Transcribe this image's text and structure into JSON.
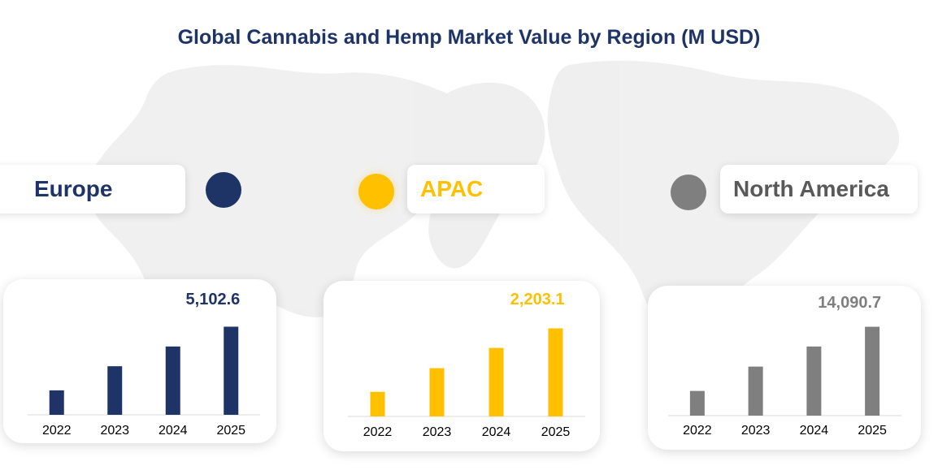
{
  "title": "Global Cannabis and Hemp Market Value by Region (M USD)",
  "background_icon": "world-map",
  "colors": {
    "europe": "#1f3466",
    "apac": "#ffc000",
    "north_america": "#7f7f7f",
    "title": "#1f3466"
  },
  "regions": [
    {
      "label": "Europe",
      "color": "#1f3466",
      "latest_label": "5,102.6"
    },
    {
      "label": "APAC",
      "color": "#ffc000",
      "latest_label": "2,203.1"
    },
    {
      "label": "North America",
      "color": "#7f7f7f",
      "latest_label": "14,090.7"
    }
  ],
  "chart_data": [
    {
      "type": "bar",
      "title": "Europe",
      "categories": [
        "2022",
        "2023",
        "2024",
        "2025"
      ],
      "values": [
        1416,
        2813,
        3956,
        5102.6
      ],
      "value_labels": [
        "",
        "",
        "",
        "5,102.6"
      ],
      "ylim": [
        0,
        5500
      ],
      "xlabel": "",
      "ylabel": ""
    },
    {
      "type": "bar",
      "title": "APAC",
      "categories": [
        "2022",
        "2023",
        "2024",
        "2025"
      ],
      "values": [
        615,
        1207,
        1713,
        2203.1
      ],
      "value_labels": [
        "",
        "",
        "",
        "2,203.1"
      ],
      "ylim": [
        0,
        2375
      ],
      "xlabel": "",
      "ylabel": ""
    },
    {
      "type": "bar",
      "title": "North America",
      "categories": [
        "2022",
        "2023",
        "2024",
        "2025"
      ],
      "values": [
        3910,
        7772,
        10960,
        14090.7
      ],
      "value_labels": [
        "",
        "",
        "",
        "14,090.7"
      ],
      "ylim": [
        0,
        15190
      ],
      "xlabel": "",
      "ylabel": ""
    }
  ]
}
